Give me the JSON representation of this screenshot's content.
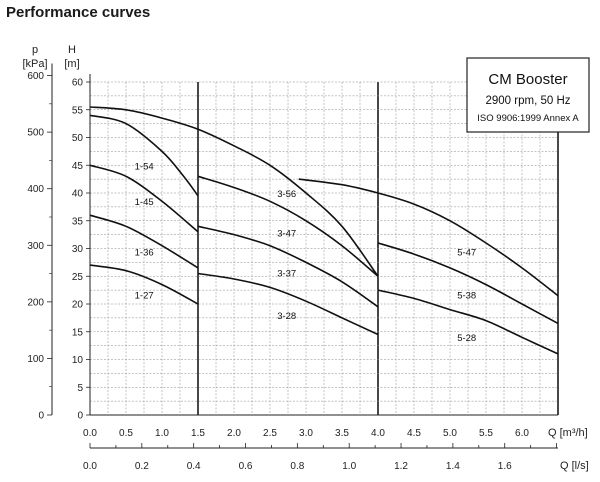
{
  "page_title": "Performance curves",
  "chart_data": {
    "type": "line",
    "title": "Performance curves",
    "info_box": {
      "title": "CM Booster",
      "line1": "2900 rpm, 50 Hz",
      "line2": "ISO 9906:1999 Annex A"
    },
    "y_head": {
      "unit_top": "H",
      "unit_bottom": "[m]",
      "min": 0,
      "max": 60,
      "ticks": [
        0,
        5,
        10,
        15,
        20,
        25,
        30,
        35,
        40,
        45,
        50,
        55,
        60
      ]
    },
    "y_pressure": {
      "unit_top": "p",
      "unit_bottom": "[kPa]",
      "ticks": [
        0,
        100,
        200,
        300,
        400,
        500,
        600
      ]
    },
    "x_flow": {
      "label": "Q [m³/h]",
      "min": 0,
      "max": 6.5,
      "ticks": [
        "0.0",
        "0.5",
        "1.0",
        "1.5",
        "2.0",
        "2.5",
        "3.0",
        "3.5",
        "4.0",
        "4.5",
        "5.0",
        "5.5",
        "6.0"
      ]
    },
    "x_flow2": {
      "label": "Q [l/s]",
      "ticks": [
        "0.0",
        "0.2",
        "0.4",
        "0.6",
        "0.8",
        "1.0",
        "1.2",
        "1.4",
        "1.6"
      ]
    },
    "series": [
      {
        "name": "1-54",
        "x": [
          0,
          0.5,
          1.0,
          1.3,
          1.5
        ],
        "y": [
          54.0,
          52.5,
          47.5,
          43,
          39.5
        ]
      },
      {
        "name": "1-45",
        "x": [
          0,
          0.5,
          1.0,
          1.5
        ],
        "y": [
          45.0,
          43.0,
          38.5,
          33.0
        ]
      },
      {
        "name": "1-36",
        "x": [
          0,
          0.5,
          1.0,
          1.5
        ],
        "y": [
          36.0,
          34.0,
          30.5,
          26.5
        ]
      },
      {
        "name": "1-27",
        "x": [
          0,
          0.5,
          1.0,
          1.5
        ],
        "y": [
          27.0,
          26.0,
          23.5,
          20.0
        ]
      },
      {
        "name": "3-56",
        "x": [
          0,
          0.5,
          1.0,
          1.5,
          2.0,
          2.5,
          3.0,
          3.5,
          4.0
        ],
        "y": [
          55.5,
          55.0,
          53.5,
          51.5,
          48.5,
          45.0,
          40.0,
          34.0,
          25.0
        ]
      },
      {
        "name": "3-47",
        "x": [
          1.5,
          2.0,
          2.5,
          3.0,
          3.5,
          4.0
        ],
        "y": [
          43.0,
          41.0,
          38.5,
          35.0,
          30.5,
          25.0
        ]
      },
      {
        "name": "3-37",
        "x": [
          1.5,
          2.0,
          2.5,
          3.0,
          3.5,
          4.0
        ],
        "y": [
          34.0,
          32.5,
          30.5,
          27.5,
          24.0,
          19.5
        ]
      },
      {
        "name": "3-28",
        "x": [
          1.5,
          2.0,
          2.5,
          3.0,
          3.5,
          4.0
        ],
        "y": [
          25.5,
          24.5,
          23.0,
          20.5,
          17.5,
          14.5
        ]
      },
      {
        "name": "5-47",
        "x": [
          2.9,
          3.5,
          4.0,
          4.5,
          5.0,
          5.5,
          6.0,
          6.5
        ],
        "y": [
          42.5,
          41.5,
          40.0,
          38.0,
          35.0,
          31.0,
          26.5,
          21.5
        ]
      },
      {
        "name": "5-38",
        "x": [
          4.0,
          4.5,
          5.0,
          5.5,
          6.0,
          6.5
        ],
        "y": [
          31.0,
          29.0,
          26.5,
          23.5,
          20.0,
          16.5
        ]
      },
      {
        "name": "5-28",
        "x": [
          4.0,
          4.5,
          5.0,
          5.5,
          6.0,
          6.5
        ],
        "y": [
          22.5,
          21.0,
          19.0,
          17.0,
          14.0,
          11.0
        ]
      }
    ],
    "grid": true
  }
}
